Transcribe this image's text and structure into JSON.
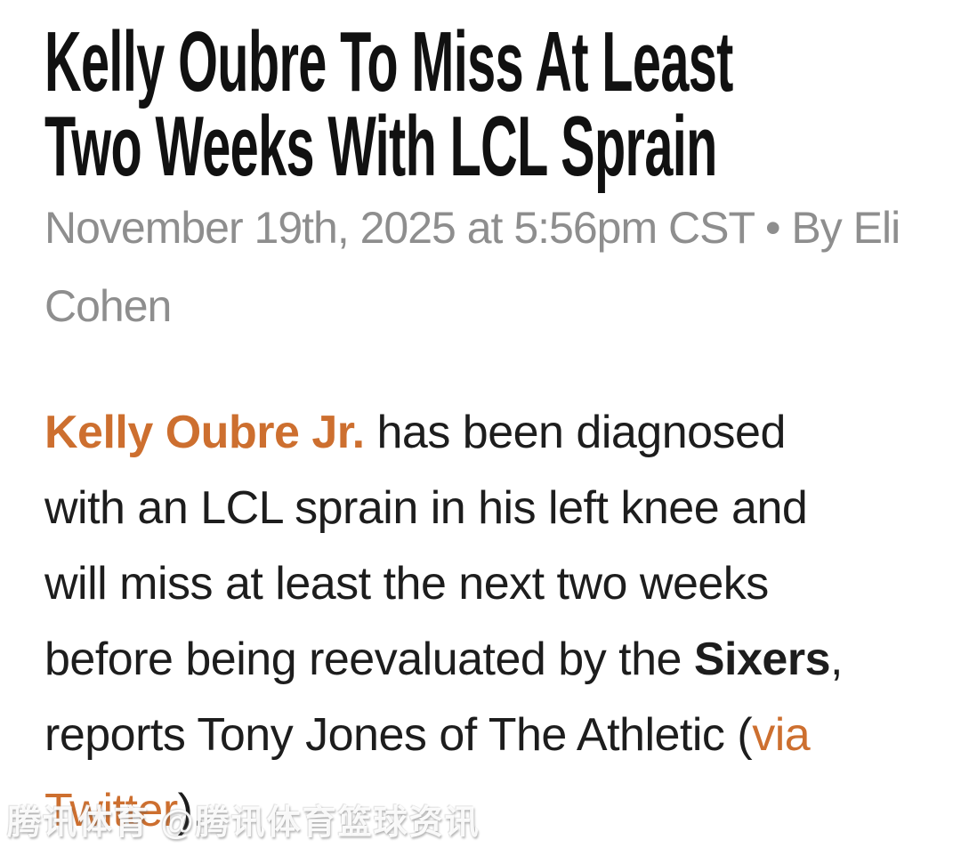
{
  "colors": {
    "page_bg": "#ffffff",
    "headline": "#111111",
    "byline": "#8e8e8e",
    "body": "#1d1d1d",
    "link": "#cd6f2f"
  },
  "article": {
    "headline_lines": [
      "Kelly Oubre To Miss At Least",
      "Two Weeks With LCL Sprain"
    ],
    "byline_lines": [
      "November 19th, 2025 at 5:56pm CST • By Eli",
      "Cohen"
    ],
    "byline_full": "November 19th, 2025 at 5:56pm CST • By Eli Cohen",
    "paragraph_lines": [
      [
        {
          "text": "Kelly Oubre Jr.",
          "style": "link_bold",
          "name": "kelly-oubre-jr-link"
        },
        {
          "text": " has been diagnosed",
          "style": "normal"
        }
      ],
      [
        {
          "text": "with an LCL sprain in his left knee and",
          "style": "normal"
        }
      ],
      [
        {
          "text": "will miss at least the next two weeks",
          "style": "normal"
        }
      ],
      [
        {
          "text": "before being reevaluated by the ",
          "style": "normal"
        },
        {
          "text": "Sixers",
          "style": "bold",
          "name": "sixers-bold-text"
        },
        {
          "text": ",",
          "style": "normal"
        }
      ],
      [
        {
          "text": "reports Tony Jones of The Athletic (",
          "style": "normal"
        },
        {
          "text": "via",
          "style": "link",
          "name": "via-twitter-link"
        }
      ],
      [
        {
          "text": "Twitter",
          "style": "link",
          "name": "via-twitter-link"
        },
        {
          "text": ").",
          "style": "normal"
        }
      ]
    ]
  },
  "watermark": {
    "text": "腾讯体育 @腾讯体育篮球资讯"
  }
}
